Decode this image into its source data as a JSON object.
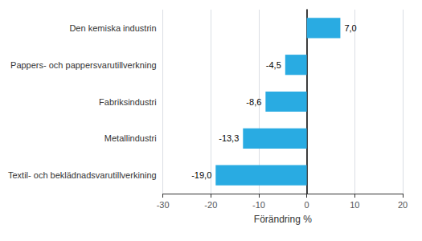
{
  "chart_data": {
    "type": "bar",
    "orientation": "horizontal",
    "categories": [
      "Textil- och beklädnadsvarutillverkining",
      "Metallindustri",
      "Fabriksindustri",
      "Pappers- och pappersvarutillverkning",
      "Den kemiska industrin"
    ],
    "values": [
      -19.0,
      -13.3,
      -8.6,
      -4.5,
      7.0
    ],
    "value_labels": [
      "-19,0",
      "-13,3",
      "-8,6",
      "-4,5",
      "7,0"
    ],
    "data_labels": true,
    "color": "#29ABE2",
    "xlabel": "Förändring %",
    "xlim": [
      -30,
      20
    ],
    "xticks": [
      -30,
      -20,
      -10,
      0,
      10,
      20
    ],
    "grid": true
  }
}
